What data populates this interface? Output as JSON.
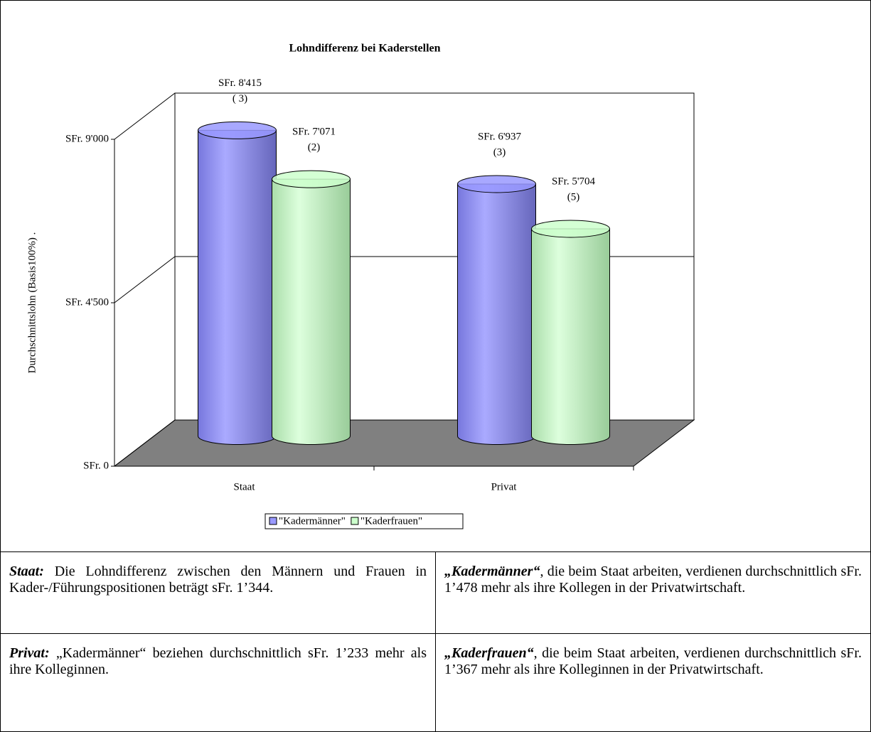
{
  "chart_data": {
    "type": "bar3d",
    "title": "Lohndifferenz bei Kaderstellen",
    "y_label": "Durchschnittslohn (Basis100%) .",
    "categories": [
      "Staat",
      "Privat"
    ],
    "series": [
      {
        "name": "\"Kadermänner\"",
        "color": "#9999ff",
        "values": [
          8415,
          6937
        ],
        "value_labels": [
          "SFr. 8'415",
          "SFr. 6'937"
        ],
        "notes": [
          "( 3)",
          "(3)"
        ]
      },
      {
        "name": "\"Kaderfrauen\"",
        "color": "#ccffcc",
        "values": [
          7071,
          5704
        ],
        "value_labels": [
          "SFr. 7'071",
          "SFr. 5'704"
        ],
        "notes": [
          "(2)",
          "(5)"
        ]
      }
    ],
    "ylim": [
      0,
      9000
    ],
    "yticks": [
      {
        "value": 0,
        "label": "SFr. 0"
      },
      {
        "value": 4500,
        "label": "SFr. 4'500"
      },
      {
        "value": 9000,
        "label": "SFr. 9'000"
      }
    ],
    "grid": true,
    "floor_color": "#808080",
    "legend": "bottom"
  },
  "table": {
    "rows": [
      [
        {
          "lead": "Staat:",
          "text": " Die Lohndifferenz zwischen den Männern und Frauen in Kader-/Führungspositionen beträgt sFr. 1’344."
        },
        {
          "lead": "„Kadermänner“",
          "text": ", die beim Staat arbeiten, verdienen durchschnittlich sFr. 1’478 mehr als ihre Kollegen in der Privatwirtschaft."
        }
      ],
      [
        {
          "lead": "Privat:",
          "text": " „Kadermänner“ beziehen durchschnittlich sFr. 1’233 mehr als ihre Kolleginnen."
        },
        {
          "lead": "„Kaderfrauen“",
          "text": ", die beim Staat arbeiten, verdienen durchschnittlich sFr. 1’367 mehr als ihre Kolleginnen in der Privatwirtschaft."
        }
      ]
    ]
  }
}
